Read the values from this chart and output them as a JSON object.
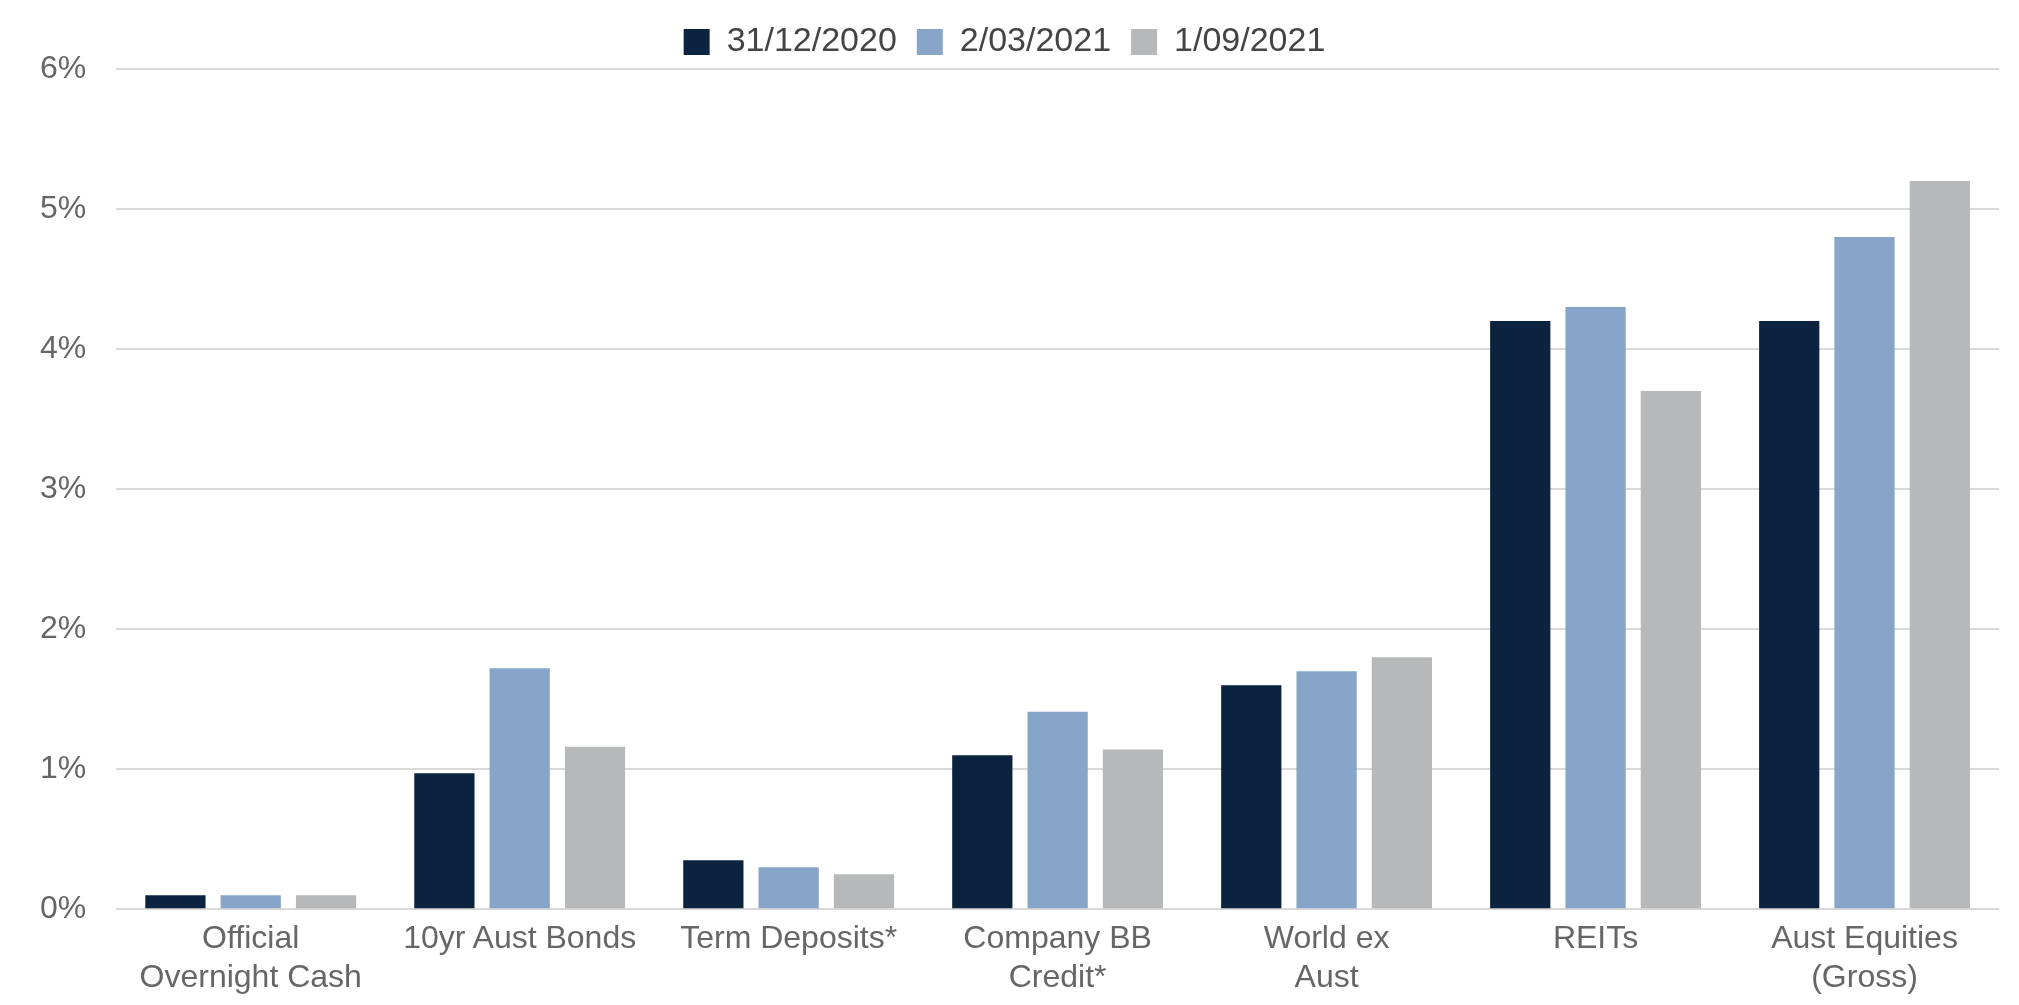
{
  "chart_data": {
    "type": "bar",
    "categories": [
      "Official\nOvernight Cash",
      "10yr Aust Bonds",
      "Term Deposits*",
      "Company BB\nCredit*",
      "World ex\nAust",
      "REITs",
      "Aust Equities\n(Gross)"
    ],
    "series": [
      {
        "name": "31/12/2020",
        "color": "#0c2340",
        "values": [
          0.1,
          0.97,
          0.35,
          1.1,
          1.6,
          4.2,
          4.2
        ]
      },
      {
        "name": "2/03/2021",
        "color": "#86a5c8",
        "values": [
          0.1,
          1.72,
          0.3,
          1.41,
          1.7,
          4.3,
          4.8
        ]
      },
      {
        "name": "1/09/2021",
        "color": "#b7b8ba",
        "values": [
          0.1,
          1.16,
          0.25,
          1.14,
          1.8,
          3.7,
          5.2
        ]
      }
    ],
    "ylim": [
      0,
      6
    ],
    "yticks": [
      {
        "value": 0,
        "label": "0%"
      },
      {
        "value": 1,
        "label": "1%"
      },
      {
        "value": 2,
        "label": "2%"
      },
      {
        "value": 3,
        "label": "3%"
      },
      {
        "value": 4,
        "label": "4%"
      },
      {
        "value": 5,
        "label": "5%"
      },
      {
        "value": 6,
        "label": "6%"
      }
    ],
    "grid": "y",
    "legend": "top"
  }
}
